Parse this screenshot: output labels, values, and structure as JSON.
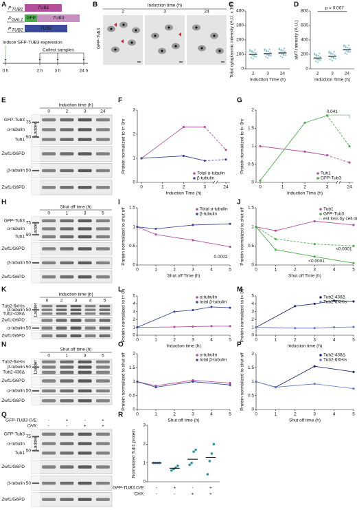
{
  "panel_labels": [
    "A",
    "B",
    "C",
    "D",
    "E",
    "F",
    "G",
    "H",
    "I",
    "J",
    "K",
    "L",
    "M",
    "N",
    "O",
    "P",
    "Q",
    "R"
  ],
  "schematic": {
    "promoters": [
      {
        "p": "P",
        "sub": "TUB1"
      },
      {
        "p": "P",
        "sub": "GAL1"
      },
      {
        "p": "P",
        "sub": "TUB2"
      }
    ],
    "genes": [
      "TUB1",
      "GFP",
      "TUB3",
      "TUB2"
    ],
    "induce": "Induce GFP-TUB3 expression",
    "collect": "Collect samples",
    "times": [
      "0 h",
      "2 h",
      "3 h",
      "24 h"
    ]
  },
  "micrographs": {
    "header": "Induction time (h)",
    "times": [
      "2",
      "3",
      "24"
    ],
    "label": "GFP-Tub3"
  },
  "blots": [
    {
      "header": "Induction time (h)",
      "lanes": [
        "0",
        "2",
        "3",
        "24"
      ],
      "ladder": "Ladder",
      "strips": [
        {
          "labels": [
            {
              "text": "GFP-Tub3",
              "color": "#4aae48"
            },
            {
              "text": "α-tubulin"
            },
            {
              "text": "Tub1",
              "color": "#b5509e"
            }
          ],
          "markers": [
            "75",
            "50"
          ]
        },
        {
          "labels": [
            {
              "text": "Zwf1/G6PD"
            }
          ]
        },
        {
          "labels": [
            {
              "text": "β-tubulin"
            }
          ],
          "markers": [
            "50"
          ]
        },
        {
          "labels": [
            {
              "text": "Zwf1/G6PD"
            }
          ]
        }
      ]
    },
    {
      "header": "Shut off time (h)",
      "lanes": [
        "0",
        "1",
        "3",
        "5"
      ],
      "ladder": "Ladder",
      "strips": [
        {
          "labels": [
            {
              "text": "GFP-Tub3",
              "color": "#4aae48"
            },
            {
              "text": "α-tubulin"
            },
            {
              "text": "Tub1",
              "color": "#b5509e"
            }
          ],
          "markers": [
            "75",
            "50"
          ]
        },
        {
          "labels": [
            {
              "text": "Zwf1/G6PD"
            }
          ]
        },
        {
          "labels": [
            {
              "text": "β-tubulin"
            }
          ],
          "markers": [
            "50"
          ]
        },
        {
          "labels": [
            {
              "text": "Zwf1/G6PD"
            }
          ]
        }
      ]
    },
    {
      "header": "Induction time (h)",
      "lanes": [
        "0",
        "2",
        "3",
        "4",
        "5"
      ],
      "ladder": "Ladder",
      "strips": [
        {
          "labels": [
            {
              "text": "Tub2-6xHis",
              "color": "#3b4b9a"
            },
            {
              "text": "β-tubulin"
            },
            {
              "text": "Tub2-438Δ",
              "color": "#3b4b9a"
            }
          ],
          "markers": [
            "50"
          ]
        },
        {
          "labels": [
            {
              "text": "Zwf1/G6PD"
            }
          ]
        },
        {
          "labels": [
            {
              "text": "α-tubulin"
            }
          ],
          "markers": [
            "50"
          ]
        },
        {
          "labels": [
            {
              "text": "Zwf1/G6PD"
            }
          ]
        }
      ]
    },
    {
      "header": "Shut off time (h)",
      "lanes": [
        "0",
        "1",
        "3",
        "5"
      ],
      "ladder": "Ladder",
      "strips": [
        {
          "labels": [
            {
              "text": "Tub2-6xHis",
              "color": "#3b4b9a"
            },
            {
              "text": "β-tubulin"
            },
            {
              "text": "Tub2-438Δ",
              "color": "#3b4b9a"
            }
          ],
          "markers": [
            "50"
          ]
        },
        {
          "labels": [
            {
              "text": "Zwf1/G6PD"
            }
          ]
        },
        {
          "labels": [
            {
              "text": "α-tubulin"
            }
          ],
          "markers": [
            "50"
          ]
        },
        {
          "labels": [
            {
              "text": "Zwf1/G6PD"
            }
          ]
        }
      ]
    },
    {
      "conditions": [
        {
          "label": "GFP-TUB3 O/E:",
          "values": [
            "-",
            "+",
            "-",
            "+"
          ]
        },
        {
          "label": "CHX:",
          "values": [
            "-",
            "-",
            "+",
            "+"
          ]
        }
      ],
      "ladder": "Ladder",
      "strips": [
        {
          "labels": [
            {
              "text": "GFP-Tub3",
              "color": "#4aae48"
            },
            {
              "text": "α-tubulin"
            },
            {
              "text": "Tub1",
              "color": "#b5509e"
            }
          ],
          "markers": [
            "75",
            "50"
          ]
        },
        {
          "labels": [
            {
              "text": "Zwf1/G6PD"
            }
          ]
        },
        {
          "labels": [
            {
              "text": "β-tubulin"
            }
          ],
          "markers": [
            "50"
          ]
        },
        {
          "labels": [
            {
              "text": "Zwf1/G6PD"
            }
          ]
        }
      ]
    }
  ],
  "chart_data": [
    {
      "type": "strip",
      "ylabel": "Total cytoplasmic intensity (A.U. x 10³)",
      "xlabel": "Induction Time (h)",
      "categories": [
        "2",
        "3",
        "24"
      ],
      "values": [
        100,
        105,
        110
      ],
      "color": "#2e93a8",
      "ylim": [
        0,
        400
      ],
      "yticks": [
        0,
        100,
        200,
        300,
        400
      ]
    },
    {
      "type": "strip",
      "ylabel": "aMT intensity (A.U.)",
      "xlabel": "Induction Time (h)",
      "categories": [
        "2",
        "3",
        "24"
      ],
      "values": [
        150,
        175,
        265
      ],
      "color": "#2e93a8",
      "ylim": [
        0,
        800
      ],
      "yticks": [
        0,
        200,
        400,
        600,
        800
      ],
      "annotations": [
        {
          "text": "p = 0.007",
          "color": "#111111"
        }
      ]
    },
    {
      "type": "line",
      "ylabel": "Protein normalized to t= 0hr",
      "xlabel": "Induction Time (h)",
      "categories": [
        "0",
        "1",
        "2",
        "3",
        "24"
      ],
      "axis_break": true,
      "dashed_last_segment": true,
      "ylim": [
        0,
        3
      ],
      "yticks": [
        0,
        1,
        2,
        3
      ],
      "legend": "lower right",
      "series": [
        {
          "name": "Total α-tubulin",
          "color": "#b5509e",
          "x": [
            "0",
            "2",
            "3",
            "24"
          ],
          "values": [
            1,
            2.3,
            2.3,
            1.35
          ]
        },
        {
          "name": "β-tubulin",
          "color": "#3b4b9a",
          "x": [
            "0",
            "2",
            "3",
            "24"
          ],
          "values": [
            1,
            1.1,
            0.9,
            0.95
          ]
        }
      ]
    },
    {
      "type": "line",
      "ylabel": "Protein normalized to t= 0hr",
      "xlabel": "Induction Time (h)",
      "categories": [
        "0",
        "1",
        "2",
        "3",
        "24"
      ],
      "axis_break": true,
      "dashed_last_segment": true,
      "ylim": [
        0,
        2
      ],
      "yticks": [
        0,
        0.5,
        1,
        1.5,
        2
      ],
      "legend": "lower right",
      "series": [
        {
          "name": "Tub1",
          "color": "#b5509e",
          "x": [
            "0",
            "2",
            "3",
            "24"
          ],
          "values": [
            1,
            0.85,
            0.75,
            0.55
          ]
        },
        {
          "name": "GFP-Tub3",
          "color": "#4aae48",
          "x": [
            "0",
            "2",
            "3",
            "24"
          ],
          "values": [
            0.05,
            1.65,
            1.85,
            1.0
          ]
        }
      ],
      "annotations": [
        {
          "text": "0.041",
          "color": "#4aae48"
        }
      ]
    },
    {
      "type": "line",
      "ylabel": "Protein normalized to shut off",
      "xlabel": "Shut off Time (h)",
      "xlim": [
        0,
        5
      ],
      "xticks": [
        0,
        1,
        2,
        3,
        4,
        5
      ],
      "ylim": [
        0,
        1.5
      ],
      "yticks": [
        0,
        0.5,
        1,
        1.5
      ],
      "legend": "upper right",
      "series": [
        {
          "name": "Total α-tubulin",
          "color": "#b5509e",
          "x": [
            0,
            1,
            3,
            5
          ],
          "values": [
            1,
            0.8,
            0.65,
            0.48
          ]
        },
        {
          "name": "β-tubulin",
          "color": "#3b4b9a",
          "x": [
            0,
            1,
            3,
            5
          ],
          "values": [
            1,
            0.95,
            1.05,
            1.08
          ]
        }
      ],
      "annotations": [
        {
          "text": "0.0002",
          "color": "#b5509e"
        }
      ]
    },
    {
      "type": "line",
      "ylabel": "Protein normalized to shut off",
      "xlabel": "Shut off Time (h)",
      "xlim": [
        0,
        5
      ],
      "xticks": [
        0,
        1,
        2,
        3,
        4,
        5
      ],
      "ylim": [
        0,
        1.5
      ],
      "yticks": [
        0,
        0.5,
        1,
        1.5
      ],
      "legend": "upper right",
      "series": [
        {
          "name": "Tub1",
          "color": "#b5509e",
          "x": [
            0,
            1,
            3,
            5
          ],
          "values": [
            1,
            0.9,
            1.15,
            1.05
          ]
        },
        {
          "name": "GFP-Tub3",
          "color": "#4aae48",
          "x": [
            0,
            1,
            3,
            5
          ],
          "values": [
            1,
            0.4,
            0.22,
            0.05
          ]
        },
        {
          "name": "est loss by cell div",
          "color": "#4aae48",
          "dash": true,
          "x": [
            0,
            1,
            3,
            5
          ],
          "values": [
            1,
            0.68,
            0.55,
            0.5
          ]
        }
      ],
      "annotations": [
        {
          "text": "<0.0001",
          "color": "#4aae48"
        },
        {
          "text": "<0.0001",
          "color": "#4aae48"
        }
      ]
    },
    {
      "type": "line",
      "ylabel": "Protein normalized to t= 0h",
      "xlabel": "Induction time (h)",
      "xlim": [
        0,
        5
      ],
      "xticks": [
        0,
        1,
        2,
        3,
        4,
        5
      ],
      "ylim": [
        0,
        5
      ],
      "yticks": [
        0,
        1,
        2,
        3,
        4,
        5
      ],
      "legend": "upper right",
      "series": [
        {
          "name": "α-tubulin",
          "color": "#b5509e",
          "x": [
            0,
            2,
            3,
            4,
            5
          ],
          "values": [
            1,
            1.05,
            1.1,
            1.15,
            1.15
          ]
        },
        {
          "name": "total β-tubulin",
          "color": "#3b4b9a",
          "x": [
            0,
            2,
            3,
            4,
            5
          ],
          "values": [
            1,
            3.0,
            3.2,
            3.6,
            3.5
          ]
        }
      ]
    },
    {
      "type": "line",
      "ylabel": "Protein normalized to t= 0h",
      "xlabel": "Induction time (h)",
      "xlim": [
        0,
        5
      ],
      "xticks": [
        0,
        1,
        2,
        3,
        4,
        5
      ],
      "ylim": [
        0,
        5
      ],
      "yticks": [
        0,
        1,
        2,
        3,
        4,
        5
      ],
      "legend": "upper right",
      "series": [
        {
          "name": "Tub2-438Δ",
          "color": "#1d2a6b",
          "x": [
            0,
            2,
            3,
            4,
            5
          ],
          "values": [
            1,
            3.7,
            4.0,
            4.4,
            4.3
          ]
        },
        {
          "name": "Tub2-6XHis",
          "color": "#6a7ec4",
          "x": [
            0,
            2,
            3,
            4,
            5
          ],
          "values": [
            1,
            0.9,
            0.9,
            1.0,
            1.05
          ]
        }
      ]
    },
    {
      "type": "line",
      "ylabel": "Protein normalized to shut off",
      "xlabel": "Shut off time (h)",
      "xlim": [
        0,
        5
      ],
      "xticks": [
        0,
        1,
        2,
        3,
        4,
        5
      ],
      "ylim": [
        0,
        2
      ],
      "yticks": [
        0,
        0.5,
        1,
        1.5,
        2
      ],
      "legend": "upper right",
      "series": [
        {
          "name": "α-tubulin",
          "color": "#b5509e",
          "x": [
            0,
            1,
            3,
            5
          ],
          "values": [
            1,
            0.85,
            1.05,
            0.95
          ]
        },
        {
          "name": "total β-tubulin",
          "color": "#3b4b9a",
          "x": [
            0,
            1,
            3,
            5
          ],
          "values": [
            1,
            0.8,
            1.0,
            0.88
          ]
        }
      ]
    },
    {
      "type": "line",
      "ylabel": "Protein normalized to shut off",
      "xlabel": "Shut off time (h)",
      "xlim": [
        0,
        5
      ],
      "xticks": [
        0,
        1,
        2,
        3,
        4,
        5
      ],
      "ylim": [
        0,
        2
      ],
      "yticks": [
        0,
        0.5,
        1,
        1.5,
        2
      ],
      "legend": "upper right",
      "series": [
        {
          "name": "Tub2-438Δ",
          "color": "#1d2a6b",
          "x": [
            0,
            1,
            3,
            5
          ],
          "values": [
            1,
            0.8,
            1.55,
            1.35
          ]
        },
        {
          "name": "Tub2-6XHis",
          "color": "#6a7ec4",
          "x": [
            0,
            1,
            3,
            5
          ],
          "values": [
            1,
            0.8,
            0.92,
            0.75
          ]
        }
      ]
    },
    {
      "type": "strip",
      "ylabel": "Normalized Tub1 protein",
      "values": [
        1,
        0.72,
        1.2,
        1.3
      ],
      "points": [
        [
          1,
          1,
          1,
          1
        ],
        [
          0.6,
          0.68,
          0.75,
          0.85
        ],
        [
          0.9,
          1.0,
          1.6,
          1.7
        ],
        [
          0.4,
          1.1,
          1.5,
          2.0
        ]
      ],
      "color": "#2e93a8",
      "ylim": [
        0,
        3
      ],
      "yticks": [
        0,
        1,
        2,
        3
      ],
      "conditions": [
        {
          "label": "GFP-TUB3 O/E:",
          "values": [
            "-",
            "+",
            "-",
            "+"
          ]
        },
        {
          "label": "CHX:",
          "values": [
            "-",
            "-",
            "+",
            "+"
          ]
        }
      ]
    }
  ]
}
